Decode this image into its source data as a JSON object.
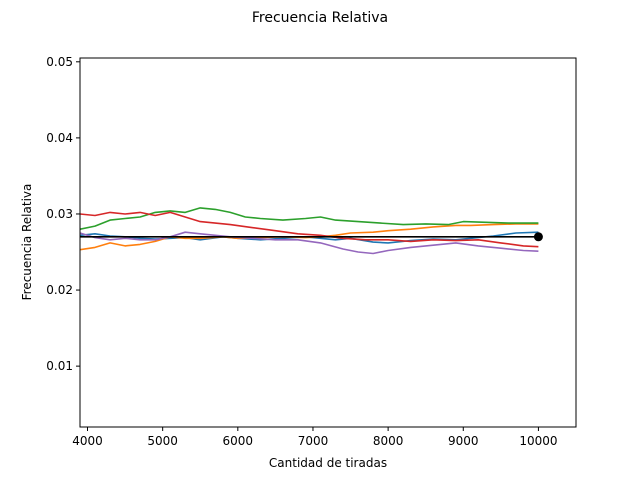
{
  "chart_data": {
    "type": "line",
    "title": "Frecuencia Relativa",
    "xlabel": "Cantidad de tiradas",
    "ylabel": "Frecuencia Relativa",
    "xlim": [
      3900,
      10500
    ],
    "ylim": [
      0.002,
      0.0505
    ],
    "xticks": [
      4000,
      5000,
      6000,
      7000,
      8000,
      9000,
      10000
    ],
    "yticks": [
      0.01,
      0.02,
      0.03,
      0.04,
      0.05
    ],
    "xtick_labels": [
      "4000",
      "5000",
      "6000",
      "7000",
      "8000",
      "9000",
      "10000"
    ],
    "ytick_labels": [
      "0.01",
      "0.02",
      "0.03",
      "0.04",
      "0.05"
    ],
    "grid": false,
    "reference": {
      "value": 0.027,
      "x_start": 3900,
      "x_end": 10000,
      "color": "#000000",
      "marker_x": 10000
    },
    "series": [
      {
        "color": "#1f77b4",
        "x": [
          3900,
          4100,
          4300,
          4500,
          4700,
          4900,
          5100,
          5300,
          5500,
          5800,
          6000,
          6300,
          6600,
          6900,
          7100,
          7300,
          7500,
          7800,
          8000,
          8300,
          8600,
          8900,
          9100,
          9400,
          9700,
          10000
        ],
        "y": [
          0.0272,
          0.0274,
          0.0271,
          0.027,
          0.0268,
          0.0267,
          0.0268,
          0.0269,
          0.0266,
          0.027,
          0.0268,
          0.0266,
          0.0268,
          0.027,
          0.0268,
          0.0266,
          0.0268,
          0.0263,
          0.0262,
          0.0265,
          0.0267,
          0.0266,
          0.0268,
          0.0271,
          0.0275,
          0.0276
        ]
      },
      {
        "color": "#ff7f0e",
        "x": [
          3900,
          4100,
          4300,
          4500,
          4700,
          4900,
          5100,
          5300,
          5500,
          5800,
          6000,
          6300,
          6600,
          6900,
          7100,
          7300,
          7500,
          7800,
          8000,
          8300,
          8600,
          8900,
          9100,
          9400,
          9700,
          10000
        ],
        "y": [
          0.0253,
          0.0256,
          0.0262,
          0.0258,
          0.026,
          0.0264,
          0.027,
          0.0268,
          0.0268,
          0.027,
          0.0268,
          0.0269,
          0.027,
          0.0269,
          0.027,
          0.0272,
          0.0275,
          0.0276,
          0.0278,
          0.028,
          0.0283,
          0.0285,
          0.0285,
          0.0286,
          0.0287,
          0.0287
        ]
      },
      {
        "color": "#2ca02c",
        "x": [
          3900,
          4100,
          4300,
          4500,
          4700,
          4900,
          5100,
          5300,
          5500,
          5700,
          5900,
          6100,
          6300,
          6600,
          6900,
          7100,
          7300,
          7600,
          7900,
          8200,
          8500,
          8800,
          9000,
          9300,
          9600,
          10000
        ],
        "y": [
          0.028,
          0.0284,
          0.0292,
          0.0294,
          0.0296,
          0.0302,
          0.0304,
          0.0302,
          0.0308,
          0.0306,
          0.0302,
          0.0296,
          0.0294,
          0.0292,
          0.0294,
          0.0296,
          0.0292,
          0.029,
          0.0288,
          0.0286,
          0.0287,
          0.0286,
          0.029,
          0.0289,
          0.0288,
          0.0288
        ]
      },
      {
        "color": "#d62728",
        "x": [
          3900,
          4100,
          4300,
          4500,
          4700,
          4900,
          5100,
          5300,
          5500,
          5700,
          5900,
          6200,
          6500,
          6800,
          7100,
          7400,
          7700,
          8000,
          8300,
          8600,
          8900,
          9200,
          9500,
          9800,
          10000
        ],
        "y": [
          0.03,
          0.0298,
          0.0302,
          0.03,
          0.0302,
          0.0298,
          0.0302,
          0.0296,
          0.029,
          0.0288,
          0.0286,
          0.0282,
          0.0278,
          0.0274,
          0.0272,
          0.0268,
          0.0266,
          0.0266,
          0.0264,
          0.0266,
          0.0265,
          0.0266,
          0.0262,
          0.0258,
          0.0257
        ]
      },
      {
        "color": "#9467bd",
        "x": [
          3900,
          4100,
          4300,
          4500,
          4700,
          4900,
          5100,
          5300,
          5500,
          5700,
          5900,
          6200,
          6500,
          6800,
          7100,
          7400,
          7600,
          7800,
          8000,
          8300,
          8600,
          8900,
          9200,
          9500,
          9800,
          10000
        ],
        "y": [
          0.0275,
          0.0269,
          0.0266,
          0.0268,
          0.0266,
          0.0266,
          0.027,
          0.0276,
          0.0274,
          0.0272,
          0.027,
          0.0268,
          0.0266,
          0.0266,
          0.0262,
          0.0254,
          0.025,
          0.0248,
          0.0252,
          0.0256,
          0.0259,
          0.0262,
          0.0258,
          0.0255,
          0.0252,
          0.0251
        ]
      }
    ]
  }
}
